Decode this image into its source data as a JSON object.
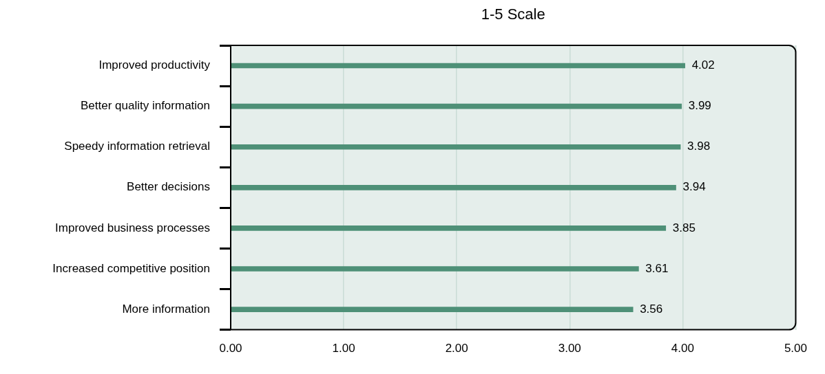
{
  "chart_data": {
    "type": "bar",
    "orientation": "horizontal",
    "title": "1-5 Scale",
    "categories": [
      "Improved productivity",
      "Better quality information",
      "Speedy information retrieval",
      "Better decisions",
      "Improved business processes",
      "Increased competitive position",
      "More information"
    ],
    "values": [
      4.02,
      3.99,
      3.98,
      3.94,
      3.85,
      3.61,
      3.56
    ],
    "color": "#4e9077",
    "xlim": [
      0,
      5
    ],
    "xticks": [
      {
        "value": 0,
        "label": "0.00"
      },
      {
        "value": 1,
        "label": "1.00"
      },
      {
        "value": 2,
        "label": "2.00"
      },
      {
        "value": 3,
        "label": "3.00"
      },
      {
        "value": 4,
        "label": "4.00"
      },
      {
        "value": 5,
        "label": "5.00"
      }
    ],
    "grid": "x",
    "data_labels": true,
    "legend": false
  }
}
